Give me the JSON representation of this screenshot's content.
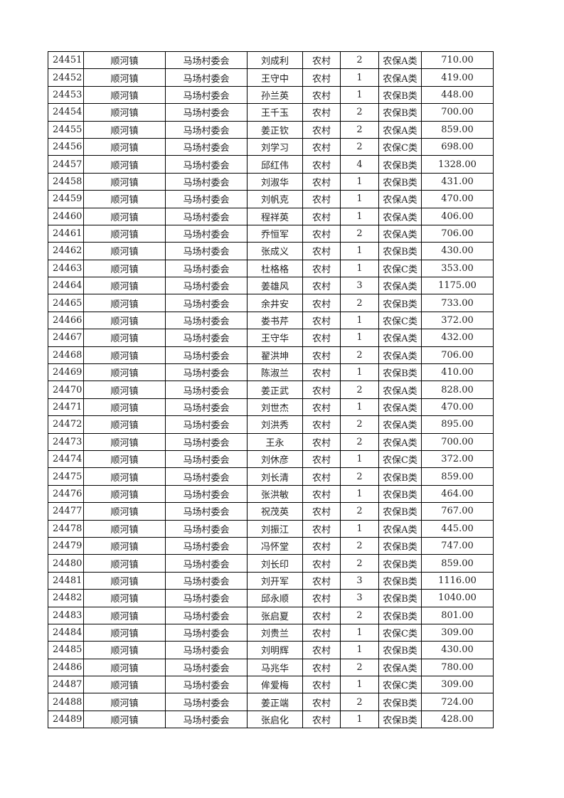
{
  "table": {
    "rows": [
      [
        "24451",
        "顺河镇",
        "马场村委会",
        "刘成利",
        "农村",
        "2",
        "农保A类",
        "710.00"
      ],
      [
        "24452",
        "顺河镇",
        "马场村委会",
        "王守中",
        "农村",
        "1",
        "农保A类",
        "419.00"
      ],
      [
        "24453",
        "顺河镇",
        "马场村委会",
        "孙兰英",
        "农村",
        "1",
        "农保B类",
        "448.00"
      ],
      [
        "24454",
        "顺河镇",
        "马场村委会",
        "王千玉",
        "农村",
        "2",
        "农保B类",
        "700.00"
      ],
      [
        "24455",
        "顺河镇",
        "马场村委会",
        "姜正钦",
        "农村",
        "2",
        "农保A类",
        "859.00"
      ],
      [
        "24456",
        "顺河镇",
        "马场村委会",
        "刘学习",
        "农村",
        "2",
        "农保C类",
        "698.00"
      ],
      [
        "24457",
        "顺河镇",
        "马场村委会",
        "邱红伟",
        "农村",
        "4",
        "农保B类",
        "1328.00"
      ],
      [
        "24458",
        "顺河镇",
        "马场村委会",
        "刘淑华",
        "农村",
        "1",
        "农保B类",
        "431.00"
      ],
      [
        "24459",
        "顺河镇",
        "马场村委会",
        "刘帆克",
        "农村",
        "1",
        "农保A类",
        "470.00"
      ],
      [
        "24460",
        "顺河镇",
        "马场村委会",
        "程祥英",
        "农村",
        "1",
        "农保A类",
        "406.00"
      ],
      [
        "24461",
        "顺河镇",
        "马场村委会",
        "乔恒军",
        "农村",
        "2",
        "农保A类",
        "706.00"
      ],
      [
        "24462",
        "顺河镇",
        "马场村委会",
        "张成义",
        "农村",
        "1",
        "农保B类",
        "430.00"
      ],
      [
        "24463",
        "顺河镇",
        "马场村委会",
        "杜格格",
        "农村",
        "1",
        "农保C类",
        "353.00"
      ],
      [
        "24464",
        "顺河镇",
        "马场村委会",
        "姜雄风",
        "农村",
        "3",
        "农保A类",
        "1175.00"
      ],
      [
        "24465",
        "顺河镇",
        "马场村委会",
        "余井安",
        "农村",
        "2",
        "农保B类",
        "733.00"
      ],
      [
        "24466",
        "顺河镇",
        "马场村委会",
        "娄书芹",
        "农村",
        "1",
        "农保C类",
        "372.00"
      ],
      [
        "24467",
        "顺河镇",
        "马场村委会",
        "王守华",
        "农村",
        "1",
        "农保A类",
        "432.00"
      ],
      [
        "24468",
        "顺河镇",
        "马场村委会",
        "翟洪坤",
        "农村",
        "2",
        "农保A类",
        "706.00"
      ],
      [
        "24469",
        "顺河镇",
        "马场村委会",
        "陈淑兰",
        "农村",
        "1",
        "农保B类",
        "410.00"
      ],
      [
        "24470",
        "顺河镇",
        "马场村委会",
        "姜正武",
        "农村",
        "2",
        "农保A类",
        "828.00"
      ],
      [
        "24471",
        "顺河镇",
        "马场村委会",
        "刘世杰",
        "农村",
        "1",
        "农保A类",
        "470.00"
      ],
      [
        "24472",
        "顺河镇",
        "马场村委会",
        "刘洪秀",
        "农村",
        "2",
        "农保A类",
        "895.00"
      ],
      [
        "24473",
        "顺河镇",
        "马场村委会",
        "王永",
        "农村",
        "2",
        "农保A类",
        "700.00"
      ],
      [
        "24474",
        "顺河镇",
        "马场村委会",
        "刘休彦",
        "农村",
        "1",
        "农保C类",
        "372.00"
      ],
      [
        "24475",
        "顺河镇",
        "马场村委会",
        "刘长清",
        "农村",
        "2",
        "农保B类",
        "859.00"
      ],
      [
        "24476",
        "顺河镇",
        "马场村委会",
        "张洪敏",
        "农村",
        "1",
        "农保B类",
        "464.00"
      ],
      [
        "24477",
        "顺河镇",
        "马场村委会",
        "祝茂英",
        "农村",
        "2",
        "农保B类",
        "767.00"
      ],
      [
        "24478",
        "顺河镇",
        "马场村委会",
        "刘振江",
        "农村",
        "1",
        "农保A类",
        "445.00"
      ],
      [
        "24479",
        "顺河镇",
        "马场村委会",
        "冯怀堂",
        "农村",
        "2",
        "农保B类",
        "747.00"
      ],
      [
        "24480",
        "顺河镇",
        "马场村委会",
        "刘长印",
        "农村",
        "2",
        "农保B类",
        "859.00"
      ],
      [
        "24481",
        "顺河镇",
        "马场村委会",
        "刘开军",
        "农村",
        "3",
        "农保B类",
        "1116.00"
      ],
      [
        "24482",
        "顺河镇",
        "马场村委会",
        "邱永顺",
        "农村",
        "3",
        "农保B类",
        "1040.00"
      ],
      [
        "24483",
        "顺河镇",
        "马场村委会",
        "张启夏",
        "农村",
        "2",
        "农保B类",
        "801.00"
      ],
      [
        "24484",
        "顺河镇",
        "马场村委会",
        "刘贵兰",
        "农村",
        "1",
        "农保C类",
        "309.00"
      ],
      [
        "24485",
        "顺河镇",
        "马场村委会",
        "刘明辉",
        "农村",
        "1",
        "农保B类",
        "430.00"
      ],
      [
        "24486",
        "顺河镇",
        "马场村委会",
        "马兆华",
        "农村",
        "2",
        "农保A类",
        "780.00"
      ],
      [
        "24487",
        "顺河镇",
        "马场村委会",
        "侔爱梅",
        "农村",
        "1",
        "农保C类",
        "309.00"
      ],
      [
        "24488",
        "顺河镇",
        "马场村委会",
        "姜正端",
        "农村",
        "2",
        "农保B类",
        "724.00"
      ],
      [
        "24489",
        "顺河镇",
        "马场村委会",
        "张启化",
        "农村",
        "1",
        "农保B类",
        "428.00"
      ]
    ]
  }
}
